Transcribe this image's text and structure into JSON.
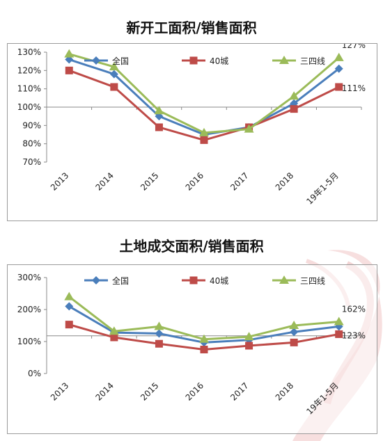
{
  "colors": {
    "national": "#4a7ebb",
    "city40": "#be4b48",
    "tier34": "#9bbb59",
    "decor": "#e8b4b4"
  },
  "chart_data": [
    {
      "type": "line",
      "title": "新开工面积/销售面积",
      "categories": [
        "2013",
        "2014",
        "2015",
        "2016",
        "2017",
        "2018",
        "19年1-5月"
      ],
      "y_ticks": [
        "70%",
        "80%",
        "90%",
        "100%",
        "110%",
        "120%",
        "130%"
      ],
      "ylim": [
        70,
        130
      ],
      "baseline": 100,
      "grid": false,
      "legend_position": "top",
      "series": [
        {
          "name": "全国",
          "values": [
            126,
            118,
            95,
            85,
            89,
            102,
            121
          ],
          "marker": "diamond"
        },
        {
          "name": "40城",
          "values": [
            120,
            111,
            89,
            82,
            89,
            99,
            111
          ],
          "marker": "square"
        },
        {
          "name": "三四线",
          "values": [
            129,
            122,
            98,
            86,
            88,
            106,
            127
          ],
          "marker": "triangle"
        }
      ],
      "annotations": [
        {
          "text": "127%",
          "series": 2,
          "index": 6
        },
        {
          "text": "111%",
          "series": 1,
          "index": 6
        }
      ]
    },
    {
      "type": "line",
      "title": "土地成交面积/销售面积",
      "categories": [
        "2013",
        "2014",
        "2015",
        "2016",
        "2017",
        "2018",
        "19年1-5月"
      ],
      "y_ticks": [
        "0%",
        "100%",
        "200%",
        "300%"
      ],
      "ylim": [
        0,
        300
      ],
      "baseline": 118,
      "grid": false,
      "legend_position": "top",
      "series": [
        {
          "name": "全国",
          "values": [
            210,
            128,
            125,
            97,
            105,
            130,
            147
          ],
          "marker": "diamond"
        },
        {
          "name": "40城",
          "values": [
            153,
            113,
            93,
            75,
            87,
            97,
            123
          ],
          "marker": "square"
        },
        {
          "name": "三四线",
          "values": [
            240,
            132,
            147,
            107,
            115,
            150,
            162
          ],
          "marker": "triangle"
        }
      ],
      "annotations": [
        {
          "text": "162%",
          "series": 2,
          "index": 6
        },
        {
          "text": "123%",
          "series": 1,
          "index": 6
        }
      ]
    }
  ]
}
